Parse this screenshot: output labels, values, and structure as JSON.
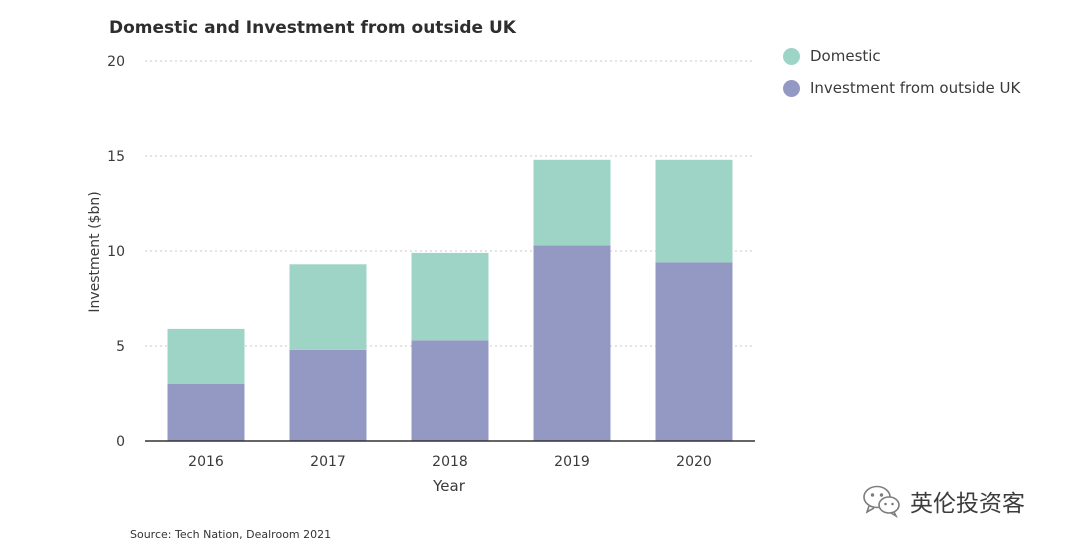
{
  "chart_data": {
    "type": "bar",
    "stacked": true,
    "title": "Domestic and Investment from outside UK",
    "xlabel": "Year",
    "ylabel": "Investment ($bn)",
    "categories": [
      "2016",
      "2017",
      "2018",
      "2019",
      "2020"
    ],
    "ylim": [
      0,
      20
    ],
    "yticks": [
      0,
      5,
      10,
      15,
      20
    ],
    "grid": true,
    "legend_position": "top-right",
    "series": [
      {
        "name": "Investment from outside UK",
        "values": [
          3.0,
          4.8,
          5.3,
          10.3,
          9.4
        ],
        "color": "#9499c3"
      },
      {
        "name": "Domestic",
        "values": [
          2.9,
          4.5,
          4.6,
          4.5,
          5.4
        ],
        "color": "#9dd4c6"
      }
    ]
  },
  "legend": {
    "items": [
      {
        "label": "Domestic",
        "color": "#9dd4c6"
      },
      {
        "label": "Investment from outside UK",
        "color": "#9499c3"
      }
    ]
  },
  "source": "Source: Tech Nation, Dealroom 2021",
  "watermark": {
    "text": "英伦投资客",
    "icon": "wechat-icon"
  }
}
